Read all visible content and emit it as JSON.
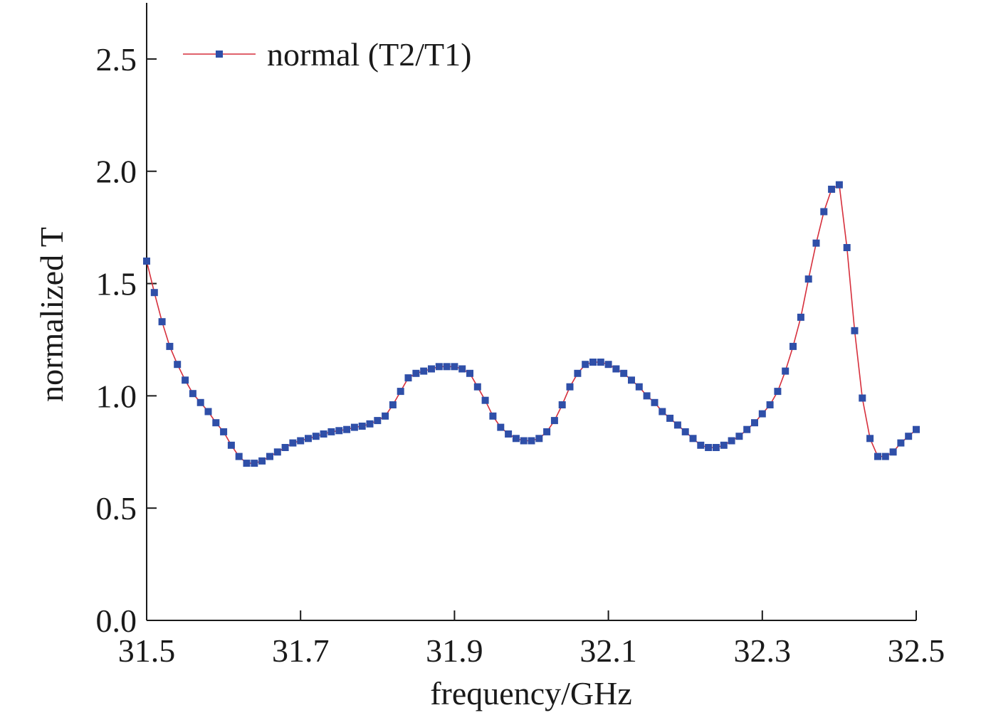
{
  "chart_data": {
    "type": "line",
    "xlabel": "frequency/GHz",
    "ylabel": "normalized T",
    "xlim": [
      31.5,
      32.5
    ],
    "ylim": [
      0.0,
      2.75
    ],
    "x_ticks": [
      "31.5",
      "31.7",
      "31.9",
      "32.1",
      "32.3",
      "32.5"
    ],
    "y_ticks": [
      "0.0",
      "0.5",
      "1.0",
      "1.5",
      "2.0",
      "2.5"
    ],
    "legend_placement": "top-left",
    "grid": false,
    "line_color": "#d62f3c",
    "marker_color": "#2f4fa8",
    "series": [
      {
        "name": "normal (T2/T1)",
        "x": [
          31.5,
          31.51,
          31.52,
          31.53,
          31.54,
          31.55,
          31.56,
          31.57,
          31.58,
          31.59,
          31.6,
          31.61,
          31.62,
          31.63,
          31.64,
          31.65,
          31.66,
          31.67,
          31.68,
          31.69,
          31.7,
          31.71,
          31.72,
          31.73,
          31.74,
          31.75,
          31.76,
          31.77,
          31.78,
          31.79,
          31.8,
          31.81,
          31.82,
          31.83,
          31.84,
          31.85,
          31.86,
          31.87,
          31.88,
          31.89,
          31.9,
          31.91,
          31.92,
          31.93,
          31.94,
          31.95,
          31.96,
          31.97,
          31.98,
          31.99,
          32.0,
          32.01,
          32.02,
          32.03,
          32.04,
          32.05,
          32.06,
          32.07,
          32.08,
          32.09,
          32.1,
          32.11,
          32.12,
          32.13,
          32.14,
          32.15,
          32.16,
          32.17,
          32.18,
          32.19,
          32.2,
          32.21,
          32.22,
          32.23,
          32.24,
          32.25,
          32.26,
          32.27,
          32.28,
          32.29,
          32.3,
          32.31,
          32.32,
          32.33,
          32.34,
          32.35,
          32.36,
          32.37,
          32.38,
          32.39,
          32.4,
          32.41,
          32.42,
          32.43,
          32.44,
          32.45,
          32.46,
          32.47,
          32.48,
          32.49,
          32.5
        ],
        "values": [
          1.6,
          1.46,
          1.33,
          1.22,
          1.14,
          1.07,
          1.01,
          0.97,
          0.93,
          0.88,
          0.84,
          0.78,
          0.73,
          0.7,
          0.7,
          0.71,
          0.73,
          0.75,
          0.77,
          0.79,
          0.8,
          0.81,
          0.82,
          0.83,
          0.84,
          0.845,
          0.85,
          0.86,
          0.865,
          0.875,
          0.89,
          0.91,
          0.96,
          1.02,
          1.08,
          1.1,
          1.11,
          1.12,
          1.13,
          1.13,
          1.13,
          1.12,
          1.1,
          1.04,
          0.98,
          0.91,
          0.86,
          0.83,
          0.81,
          0.8,
          0.8,
          0.81,
          0.84,
          0.89,
          0.96,
          1.04,
          1.1,
          1.14,
          1.15,
          1.15,
          1.14,
          1.12,
          1.1,
          1.07,
          1.04,
          1.0,
          0.97,
          0.93,
          0.9,
          0.87,
          0.84,
          0.81,
          0.78,
          0.77,
          0.77,
          0.78,
          0.8,
          0.82,
          0.85,
          0.88,
          0.92,
          0.96,
          1.02,
          1.11,
          1.22,
          1.35,
          1.52,
          1.68,
          1.82,
          1.92,
          1.94,
          1.66,
          1.29,
          0.99,
          0.81,
          0.73,
          0.73,
          0.75,
          0.79,
          0.82,
          0.85
        ]
      }
    ]
  }
}
